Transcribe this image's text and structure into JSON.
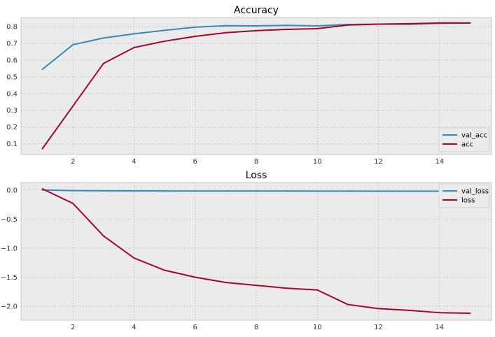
{
  "chart_data": [
    {
      "type": "line",
      "title": "Accuracy",
      "xlabel": "",
      "ylabel": "",
      "xlim": [
        0.3,
        15.7
      ],
      "ylim": [
        0.035,
        0.855
      ],
      "xticks": [
        2,
        4,
        6,
        8,
        10,
        12,
        14
      ],
      "yticks": [
        0.1,
        0.2,
        0.3,
        0.4,
        0.5,
        0.6,
        0.7,
        0.8
      ],
      "xtick_labels": [
        "2",
        "4",
        "6",
        "8",
        "10",
        "12",
        "14"
      ],
      "ytick_labels": [
        "0.1",
        "0.2",
        "0.3",
        "0.4",
        "0.5",
        "0.6",
        "0.7",
        "0.8"
      ],
      "grid": true,
      "legend": "lower-right",
      "x": [
        1,
        2,
        3,
        4,
        5,
        6,
        7,
        8,
        9,
        10,
        11,
        12,
        13,
        14,
        15
      ],
      "series": [
        {
          "name": "val_acc",
          "color": "#348ABD",
          "values": [
            0.545,
            0.692,
            0.732,
            0.757,
            0.778,
            0.797,
            0.806,
            0.805,
            0.808,
            0.805,
            0.813,
            0.815,
            0.814,
            0.82,
            0.822
          ]
        },
        {
          "name": "acc",
          "color": "#A60628",
          "values": [
            0.07,
            0.325,
            0.58,
            0.675,
            0.713,
            0.742,
            0.764,
            0.776,
            0.784,
            0.788,
            0.81,
            0.815,
            0.818,
            0.822,
            0.822
          ]
        }
      ]
    },
    {
      "type": "line",
      "title": "Loss",
      "xlabel": "",
      "ylabel": "",
      "xlim": [
        0.3,
        15.7
      ],
      "ylim": [
        -2.24,
        0.13
      ],
      "xticks": [
        2,
        4,
        6,
        8,
        10,
        12,
        14
      ],
      "yticks": [
        0.0,
        -0.5,
        -1.0,
        -1.5,
        -2.0
      ],
      "xtick_labels": [
        "2",
        "4",
        "6",
        "8",
        "10",
        "12",
        "14"
      ],
      "ytick_labels": [
        "0.0",
        "−0.5",
        "−1.0",
        "−1.5",
        "−2.0"
      ],
      "grid": true,
      "legend": "upper-right",
      "x": [
        1,
        2,
        3,
        4,
        5,
        6,
        7,
        8,
        9,
        10,
        11,
        12,
        13,
        14,
        15
      ],
      "series": [
        {
          "name": "val_loss",
          "color": "#348ABD",
          "values": [
            0.0,
            -0.01,
            -0.013,
            -0.015,
            -0.016,
            -0.018,
            -0.018,
            -0.017,
            -0.018,
            -0.019,
            -0.019,
            -0.02,
            -0.02,
            -0.02,
            -0.021
          ]
        },
        {
          "name": "loss",
          "color": "#A60628",
          "values": [
            0.02,
            -0.23,
            -0.79,
            -1.17,
            -1.38,
            -1.5,
            -1.59,
            -1.64,
            -1.69,
            -1.72,
            -1.97,
            -2.04,
            -2.07,
            -2.11,
            -2.12
          ]
        }
      ]
    }
  ]
}
